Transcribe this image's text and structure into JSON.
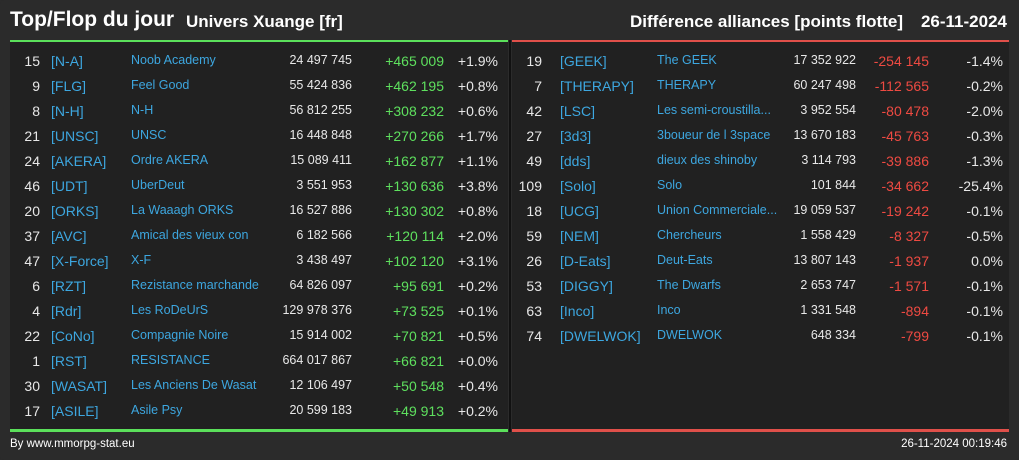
{
  "header": {
    "title": "Top/Flop du jour",
    "universe": "Univers Xuange [fr]",
    "metric": "Différence alliances [points flotte]",
    "date": "26-11-2024"
  },
  "colors": {
    "positive": "#5ee05e",
    "negative": "#ee4a42",
    "link": "#3da7e0"
  },
  "top": [
    {
      "rank": "15",
      "tag": "[N-A]",
      "name": "Noob Academy",
      "points": "24 497 745",
      "delta": "+465 009",
      "pct": "+1.9%"
    },
    {
      "rank": "9",
      "tag": "[FLG]",
      "name": "Feel Good",
      "points": "55 424 836",
      "delta": "+462 195",
      "pct": "+0.8%"
    },
    {
      "rank": "8",
      "tag": "[N-H]",
      "name": "N-H",
      "points": "56 812 255",
      "delta": "+308 232",
      "pct": "+0.6%"
    },
    {
      "rank": "21",
      "tag": "[UNSC]",
      "name": "UNSC",
      "points": "16 448 848",
      "delta": "+270 266",
      "pct": "+1.7%"
    },
    {
      "rank": "24",
      "tag": "[AKERA]",
      "name": "Ordre AKERA",
      "points": "15 089 411",
      "delta": "+162 877",
      "pct": "+1.1%"
    },
    {
      "rank": "46",
      "tag": "[UDT]",
      "name": "UberDeut",
      "points": "3 551 953",
      "delta": "+130 636",
      "pct": "+3.8%"
    },
    {
      "rank": "20",
      "tag": "[ORKS]",
      "name": "La Waaagh ORKS",
      "points": "16 527 886",
      "delta": "+130 302",
      "pct": "+0.8%"
    },
    {
      "rank": "37",
      "tag": "[AVC]",
      "name": "Amical des vieux con",
      "points": "6 182 566",
      "delta": "+120 114",
      "pct": "+2.0%"
    },
    {
      "rank": "47",
      "tag": "[X-Force]",
      "name": "X-F",
      "points": "3 438 497",
      "delta": "+102 120",
      "pct": "+3.1%"
    },
    {
      "rank": "6",
      "tag": "[RZT]",
      "name": "Rezistance marchande",
      "points": "64 826 097",
      "delta": "+95 691",
      "pct": "+0.2%"
    },
    {
      "rank": "4",
      "tag": "[Rdr]",
      "name": "Les RoDeUrS",
      "points": "129 978 376",
      "delta": "+73 525",
      "pct": "+0.1%"
    },
    {
      "rank": "22",
      "tag": "[CoNo]",
      "name": "Compagnie Noire",
      "points": "15 914 002",
      "delta": "+70 821",
      "pct": "+0.5%"
    },
    {
      "rank": "1",
      "tag": "[RST]",
      "name": "RESISTANCE",
      "points": "664 017 867",
      "delta": "+66 821",
      "pct": "+0.0%"
    },
    {
      "rank": "30",
      "tag": "[WASAT]",
      "name": "Les Anciens De Wasat",
      "points": "12 106 497",
      "delta": "+50 548",
      "pct": "+0.4%"
    },
    {
      "rank": "17",
      "tag": "[ASILE]",
      "name": "Asile Psy",
      "points": "20 599 183",
      "delta": "+49 913",
      "pct": "+0.2%"
    }
  ],
  "flop": [
    {
      "rank": "19",
      "tag": "[GEEK]",
      "name": "The GEEK",
      "points": "17 352 922",
      "delta": "-254 145",
      "pct": "-1.4%"
    },
    {
      "rank": "7",
      "tag": "[THERAPY]",
      "name": "THERAPY",
      "points": "60 247 498",
      "delta": "-112 565",
      "pct": "-0.2%"
    },
    {
      "rank": "42",
      "tag": "[LSC]",
      "name": "Les semi-croustilla...",
      "points": "3 952 554",
      "delta": "-80 478",
      "pct": "-2.0%"
    },
    {
      "rank": "27",
      "tag": "[3d3]",
      "name": "3boueur de l 3space",
      "points": "13 670 183",
      "delta": "-45 763",
      "pct": "-0.3%"
    },
    {
      "rank": "49",
      "tag": "[dds]",
      "name": "dieux des shinoby",
      "points": "3 114 793",
      "delta": "-39 886",
      "pct": "-1.3%"
    },
    {
      "rank": "109",
      "tag": "[Solo]",
      "name": "Solo",
      "points": "101 844",
      "delta": "-34 662",
      "pct": "-25.4%"
    },
    {
      "rank": "18",
      "tag": "[UCG]",
      "name": "Union Commerciale...",
      "points": "19 059 537",
      "delta": "-19 242",
      "pct": "-0.1%"
    },
    {
      "rank": "59",
      "tag": "[NEM]",
      "name": "Chercheurs",
      "points": "1 558 429",
      "delta": "-8 327",
      "pct": "-0.5%"
    },
    {
      "rank": "26",
      "tag": "[D-Eats]",
      "name": "Deut-Eats",
      "points": "13 807 143",
      "delta": "-1 937",
      "pct": "0.0%"
    },
    {
      "rank": "53",
      "tag": "[DIGGY]",
      "name": "The Dwarfs",
      "points": "2 653 747",
      "delta": "-1 571",
      "pct": "-0.1%"
    },
    {
      "rank": "63",
      "tag": "[Inco]",
      "name": "Inco",
      "points": "1 331 548",
      "delta": "-894",
      "pct": "-0.1%"
    },
    {
      "rank": "74",
      "tag": "[DWELWOK]",
      "name": "DWELWOK",
      "points": "648 334",
      "delta": "-799",
      "pct": "-0.1%"
    }
  ],
  "footer": {
    "by": "By www.mmorpg-stat.eu",
    "timestamp": "26-11-2024 00:19:46"
  }
}
